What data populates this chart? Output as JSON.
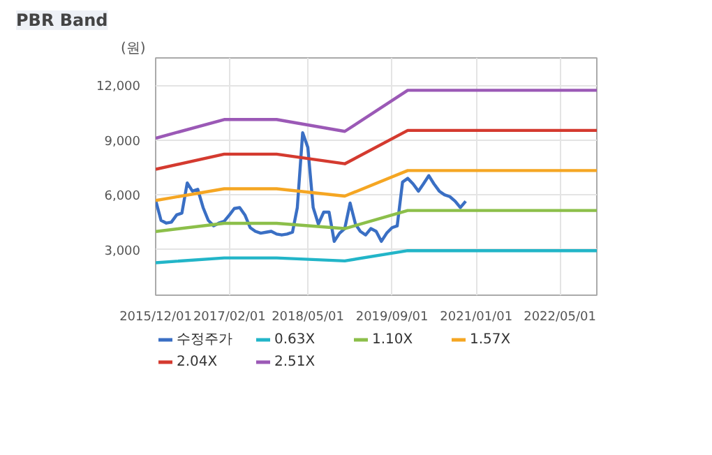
{
  "chart_data": {
    "type": "line",
    "title": "PBR Band",
    "ylabel": "(원)",
    "x": [
      "2015-12",
      "2016-01",
      "2016-02",
      "2016-03",
      "2016-04",
      "2016-05",
      "2016-06",
      "2016-07",
      "2016-08",
      "2016-09",
      "2016-10",
      "2016-11",
      "2016-12",
      "2017-01",
      "2017-02",
      "2017-03",
      "2017-04",
      "2017-05",
      "2017-06",
      "2017-07",
      "2017-08",
      "2017-09",
      "2017-10",
      "2017-11",
      "2017-12",
      "2018-01",
      "2018-02",
      "2018-03",
      "2018-04",
      "2018-05",
      "2018-06",
      "2018-07",
      "2018-08",
      "2018-09",
      "2018-10",
      "2018-11",
      "2018-12",
      "2019-01",
      "2019-02",
      "2019-03",
      "2019-04",
      "2019-05",
      "2019-06",
      "2019-07",
      "2019-08",
      "2019-09",
      "2019-10",
      "2019-11",
      "2019-12",
      "2020-01",
      "2020-02",
      "2020-03",
      "2020-04",
      "2020-05",
      "2020-06",
      "2020-07",
      "2020-08",
      "2020-09",
      "2020-10",
      "2020-11"
    ],
    "series": [
      {
        "name": "수정주가",
        "color": "#3a6fc4",
        "values": [
          5700,
          4600,
          4450,
          4500,
          4900,
          5000,
          6650,
          6200,
          6300,
          5300,
          4600,
          4300,
          4450,
          4550,
          4900,
          5250,
          5300,
          4900,
          4200,
          4000,
          3900,
          3950,
          4000,
          3850,
          3800,
          3850,
          3950,
          5300,
          9400,
          8600,
          5300,
          4400,
          5050,
          5050,
          3450,
          3900,
          4150,
          5550,
          4400,
          4000,
          3800,
          4150,
          4000,
          3450,
          3900,
          4200,
          4300,
          6700,
          6900,
          6600,
          6200,
          6600,
          7050,
          6600,
          6200,
          6000,
          5900,
          5650,
          5300,
          5650
        ]
      },
      {
        "name": "0.63X",
        "color": "#22b5c8",
        "x": [
          "2015-12",
          "2017-01",
          "2017-11",
          "2018-12",
          "2019-12",
          "2022-12"
        ],
        "values": [
          2280,
          2540,
          2540,
          2380,
          2940,
          2940
        ]
      },
      {
        "name": "1.10X",
        "color": "#8cbf4a",
        "x": [
          "2015-12",
          "2017-01",
          "2017-11",
          "2018-12",
          "2019-12",
          "2022-12"
        ],
        "values": [
          3990,
          4440,
          4440,
          4150,
          5140,
          5140
        ]
      },
      {
        "name": "1.57X",
        "color": "#f5a623",
        "x": [
          "2015-12",
          "2017-01",
          "2017-11",
          "2018-12",
          "2019-12",
          "2022-12"
        ],
        "values": [
          5690,
          6330,
          6330,
          5930,
          7330,
          7330
        ]
      },
      {
        "name": "2.04X",
        "color": "#d43a2f",
        "x": [
          "2015-12",
          "2017-01",
          "2017-11",
          "2018-12",
          "2019-12",
          "2022-12"
        ],
        "values": [
          7400,
          8230,
          8230,
          7700,
          9530,
          9530
        ]
      },
      {
        "name": "2.51X",
        "color": "#9b59b6",
        "x": [
          "2015-12",
          "2017-01",
          "2017-11",
          "2018-12",
          "2019-12",
          "2022-12"
        ],
        "values": [
          9100,
          10125,
          10125,
          9475,
          11725,
          11725
        ]
      }
    ],
    "xlim": [
      "2015-12-01",
      "2022-12-01"
    ],
    "xticks": [
      {
        "value": "2015-12-01",
        "label": "2015/12/01"
      },
      {
        "value": "2017-02-01",
        "label": "2017/02/01"
      },
      {
        "value": "2018-05-01",
        "label": "2018/05/01"
      },
      {
        "value": "2019-09-01",
        "label": "2019/09/01"
      },
      {
        "value": "2021-01-01",
        "label": "2021/01/01"
      },
      {
        "value": "2022-05-01",
        "label": "2022/05/01"
      }
    ],
    "ylim": [
      500,
      13500
    ],
    "yticks": [
      {
        "value": 3000,
        "label": "3,000"
      },
      {
        "value": 6000,
        "label": "6,000"
      },
      {
        "value": 9000,
        "label": "9,000"
      },
      {
        "value": 12000,
        "label": "12,000"
      }
    ],
    "grid": true,
    "legend": "bottom",
    "marker": "none",
    "line_style": "solid"
  }
}
